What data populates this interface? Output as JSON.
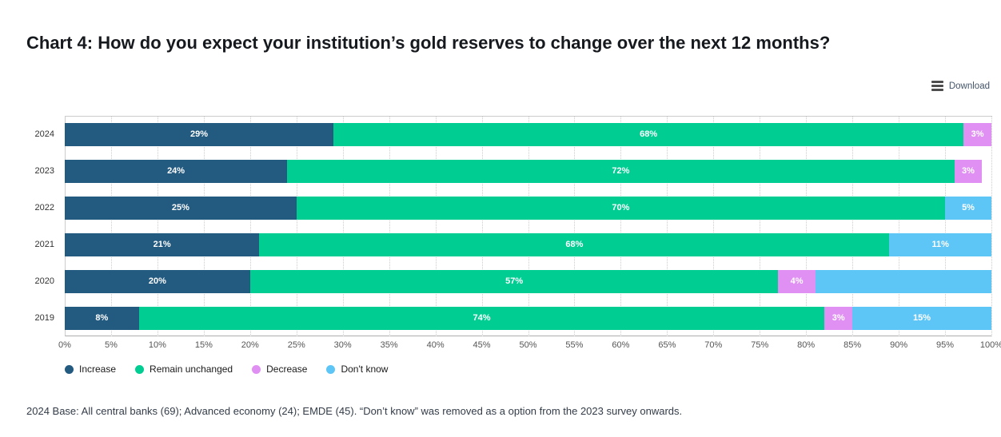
{
  "title": "Chart 4: How do you expect your institution’s gold reserves to change over the next 12 months?",
  "download": {
    "label": "Download",
    "icon": "hamburger-menu-icon"
  },
  "footnote": "2024 Base: All central banks (69); Advanced economy (24); EMDE (45). “Don’t know” was removed as a option from the 2023 survey onwards.",
  "chart_data": {
    "type": "bar",
    "stacked": true,
    "orientation": "horizontal",
    "categories": [
      "2024",
      "2023",
      "2022",
      "2021",
      "2020",
      "2019"
    ],
    "series": [
      {
        "name": "Increase",
        "color": "#235a80",
        "values": [
          29,
          24,
          25,
          21,
          20,
          8
        ],
        "labels": [
          "29%",
          "24%",
          "25%",
          "21%",
          "20%",
          "8%"
        ]
      },
      {
        "name": "Remain unchanged",
        "color": "#00cd92",
        "values": [
          68,
          72,
          70,
          68,
          57,
          74
        ],
        "labels": [
          "68%",
          "72%",
          "70%",
          "68%",
          "57%",
          "74%"
        ]
      },
      {
        "name": "Decrease",
        "color": "#df90f2",
        "values": [
          3,
          3,
          0,
          0,
          4,
          3
        ],
        "labels": [
          "3%",
          "3%",
          "",
          "",
          "4%",
          "3%"
        ]
      },
      {
        "name": "Don't know",
        "color": "#5ec5f7",
        "values": [
          0,
          0,
          5,
          11,
          19,
          15
        ],
        "labels": [
          "",
          "",
          "5%",
          "11%",
          "",
          "15%"
        ]
      }
    ],
    "xlim": [
      0,
      100
    ],
    "xtick_step": 5,
    "xticks": [
      "0%",
      "5%",
      "10%",
      "15%",
      "20%",
      "25%",
      "30%",
      "35%",
      "40%",
      "45%",
      "50%",
      "55%",
      "60%",
      "65%",
      "70%",
      "75%",
      "80%",
      "85%",
      "90%",
      "95%",
      "100%"
    ],
    "grid": "vertical-dotted-every-5pct",
    "legend_position": "bottom-left"
  }
}
